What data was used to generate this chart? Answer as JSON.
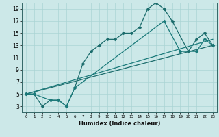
{
  "title": "",
  "xlabel": "Humidex (Indice chaleur)",
  "bg_color": "#cce8e8",
  "line_color1": "#1a6b6b",
  "line_color2": "#1a7a7a",
  "ylim": [
    2,
    20
  ],
  "xlim": [
    -0.5,
    23.5
  ],
  "yticks": [
    3,
    5,
    7,
    9,
    11,
    13,
    15,
    17,
    19
  ],
  "xticks": [
    0,
    1,
    2,
    3,
    4,
    5,
    6,
    7,
    8,
    9,
    10,
    11,
    12,
    13,
    14,
    15,
    16,
    17,
    18,
    19,
    20,
    21,
    22,
    23
  ],
  "series1_x": [
    0,
    1,
    2,
    3,
    4,
    5,
    6,
    7,
    8,
    9,
    10,
    11,
    12,
    13,
    14,
    15,
    16,
    17,
    18,
    20,
    21,
    22,
    23
  ],
  "series1_y": [
    5,
    5,
    3,
    4,
    4,
    3,
    6,
    10,
    12,
    13,
    14,
    14,
    15,
    15,
    16,
    19,
    20,
    19,
    17,
    12,
    14,
    15,
    13
  ],
  "series2_x": [
    0,
    1,
    3,
    4,
    5,
    6,
    17,
    19,
    21,
    22,
    23
  ],
  "series2_y": [
    5,
    5,
    4,
    4,
    3,
    6,
    17,
    12,
    12,
    14,
    13
  ],
  "series3_x": [
    0,
    23
  ],
  "series3_y": [
    5,
    13
  ],
  "series4_x": [
    0,
    23
  ],
  "series4_y": [
    5,
    14
  ],
  "markersize": 2.5,
  "lw": 0.9,
  "xlabel_fontsize": 6,
  "tick_fontsize_x": 4.2,
  "tick_fontsize_y": 5.5,
  "grid_color": "#aad4d4"
}
